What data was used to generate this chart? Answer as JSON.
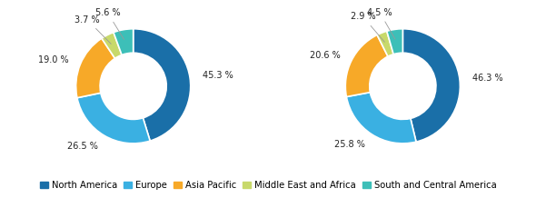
{
  "chart1": {
    "values": [
      45.3,
      26.5,
      19.0,
      3.7,
      5.6
    ],
    "labels": [
      "45.3 %",
      "26.5 %",
      "19.0 %",
      "3.7 %",
      "5.6 %"
    ]
  },
  "chart2": {
    "values": [
      46.3,
      25.8,
      20.6,
      2.9,
      4.5
    ],
    "labels": [
      "46.3 %",
      "25.8 %",
      "20.6 %",
      "2.9 %",
      "4.5 %"
    ]
  },
  "colors": [
    "#1a6fa8",
    "#3ab0e2",
    "#f7a928",
    "#c8d96b",
    "#3dbfb8"
  ],
  "legend_labels": [
    "North America",
    "Europe",
    "Asia Pacific",
    "Middle East and Africa",
    "South and Central America"
  ],
  "startangle": 90,
  "label_fontsize": 7.0,
  "legend_fontsize": 7.2
}
